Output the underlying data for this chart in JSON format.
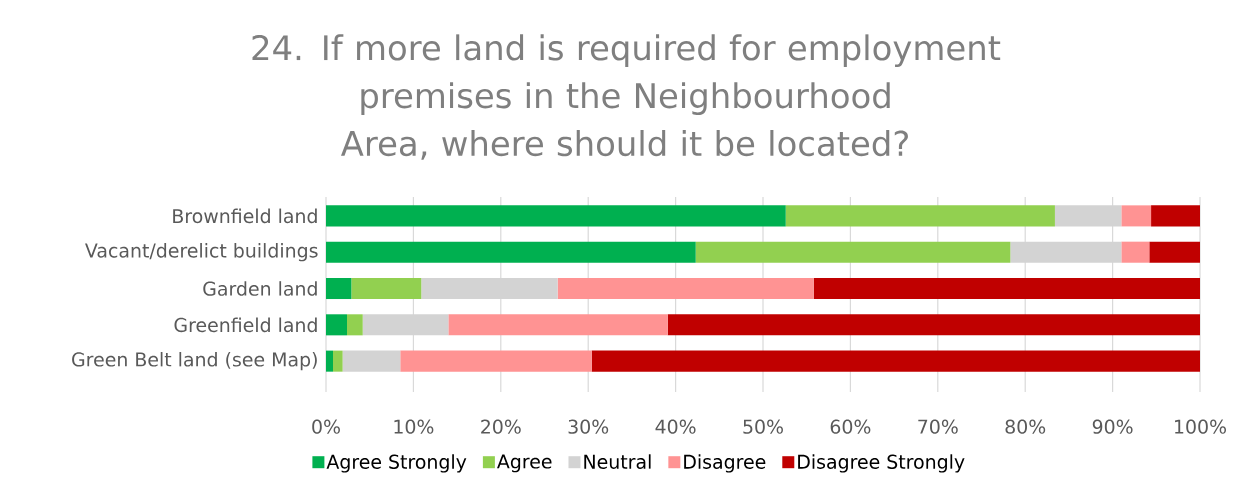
{
  "chart_data": {
    "type": "bar",
    "orientation": "horizontal",
    "stacked": true,
    "title": "24. If more land is required for employment premises in the Neighbourhood Area, where should it be located?",
    "categories": [
      "Brownfield land",
      "Vacant/derelict buildings",
      "Garden land",
      "Greenfield land",
      "Green Belt land (see Map)"
    ],
    "series": [
      {
        "name": "Agree Strongly",
        "color": "#00b050",
        "values": [
          52.6,
          42.3,
          2.9,
          2.4,
          0.8
        ]
      },
      {
        "name": "Agree",
        "color": "#92d050",
        "values": [
          30.8,
          36.0,
          8.0,
          1.8,
          1.1
        ]
      },
      {
        "name": "Neutral",
        "color": "#d3d3d3",
        "values": [
          7.6,
          12.7,
          15.6,
          9.8,
          6.6
        ]
      },
      {
        "name": "Disagree",
        "color": "#ff9393",
        "values": [
          3.4,
          3.2,
          29.3,
          25.1,
          21.9
        ]
      },
      {
        "name": "Disagree Strongly",
        "color": "#c00000",
        "values": [
          5.6,
          5.8,
          44.2,
          60.9,
          69.6
        ]
      }
    ],
    "xlim": [
      0,
      100
    ],
    "xticks": [
      {
        "value": 0,
        "label": "0%"
      },
      {
        "value": 10,
        "label": "10%"
      },
      {
        "value": 20,
        "label": "20%"
      },
      {
        "value": 30,
        "label": "30%"
      },
      {
        "value": 40,
        "label": "40%"
      },
      {
        "value": 50,
        "label": "50%"
      },
      {
        "value": 60,
        "label": "60%"
      },
      {
        "value": 70,
        "label": "70%"
      },
      {
        "value": 80,
        "label": "80%"
      },
      {
        "value": 90,
        "label": "90%"
      },
      {
        "value": 100,
        "label": "100%"
      }
    ],
    "grid": "x",
    "legend": "bottom"
  }
}
